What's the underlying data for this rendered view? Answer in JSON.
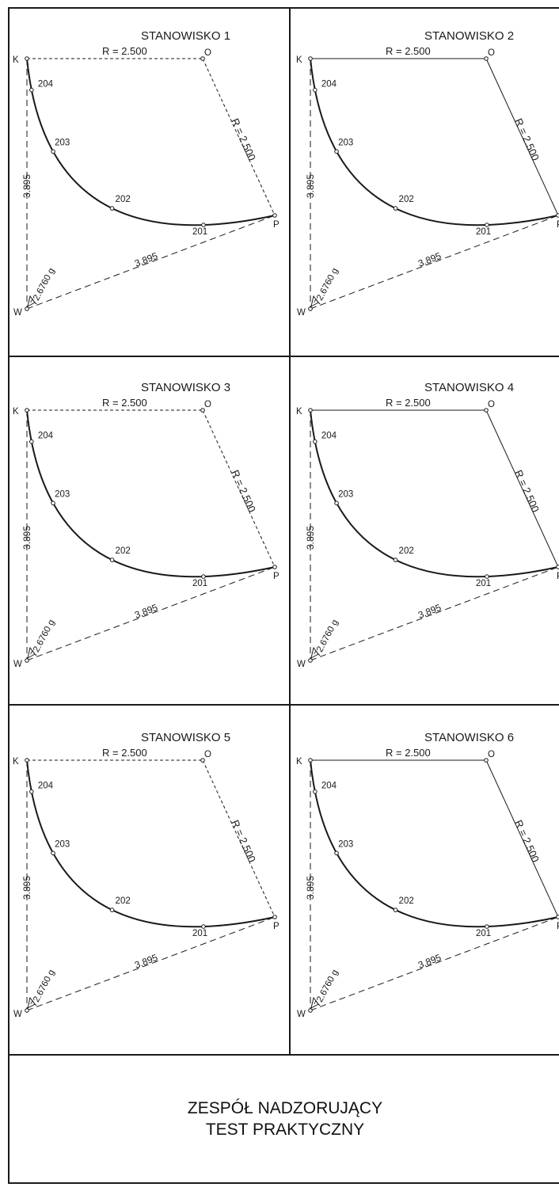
{
  "stations": [
    {
      "title": "STANOWISKO 1",
      "style": "dashed"
    },
    {
      "title": "STANOWISKO 2",
      "style": "solid"
    },
    {
      "title": "STANOWISKO 3",
      "style": "dashed"
    },
    {
      "title": "STANOWISKO 4",
      "style": "solid"
    },
    {
      "title": "STANOWISKO 5",
      "style": "dashed"
    },
    {
      "title": "STANOWISKO 6",
      "style": "solid"
    }
  ],
  "labels": {
    "radius": "R = 2.500",
    "chord": "3.895",
    "side": "3.895",
    "angle": "72.6760 g",
    "point_k": "K",
    "point_o": "O",
    "point_p": "P",
    "point_w": "W",
    "point_201": "201",
    "point_202": "202",
    "point_203": "203",
    "point_204": "204"
  },
  "footer": {
    "line1": "ZESPÓŁ NADZORUJĄCY",
    "line2": "TEST PRAKTYCZNY"
  },
  "colors": {
    "line": "#1a1a1a",
    "background": "#ffffff"
  }
}
